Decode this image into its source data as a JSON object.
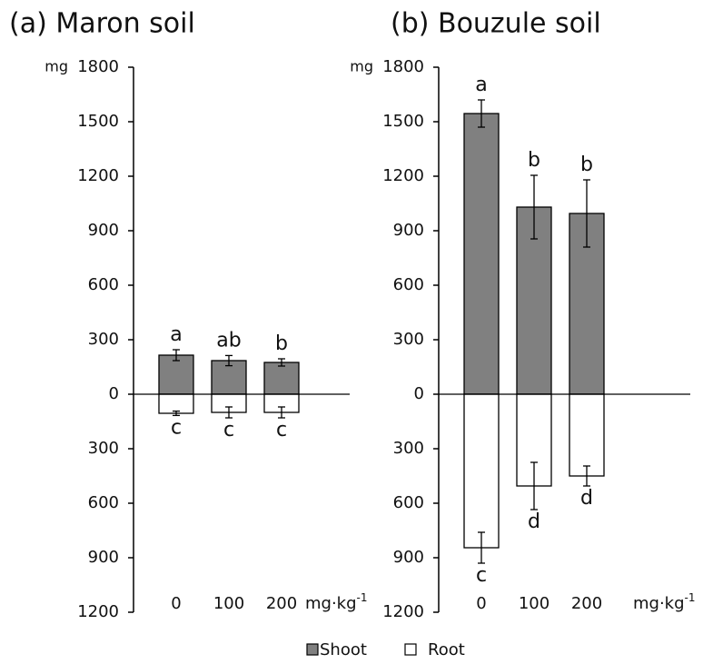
{
  "chart_data": [
    {
      "type": "bar",
      "title": "(a) Maron soil",
      "y_label": "mg",
      "x_label": "mg·kg",
      "x_label_sup": "-1",
      "categories": [
        "0",
        "100",
        "200"
      ],
      "series": [
        {
          "name": "Shoot",
          "color": "#808080",
          "values": [
            215,
            185,
            175
          ],
          "errors": [
            30,
            28,
            20
          ],
          "letters": [
            "a",
            "ab",
            "b"
          ]
        },
        {
          "name": "Root",
          "color": "#ffffff",
          "values": [
            -105,
            -100,
            -100
          ],
          "errors": [
            12,
            30,
            30
          ],
          "letters": [
            "c",
            "c",
            "c"
          ]
        }
      ],
      "ylim": [
        -1200,
        1800
      ],
      "yticks": [
        {
          "value": -1200,
          "label": "1200"
        },
        {
          "value": -900,
          "label": "900"
        },
        {
          "value": -600,
          "label": "600"
        },
        {
          "value": -300,
          "label": "300"
        },
        0,
        300,
        600,
        900,
        1200,
        1500,
        1800
      ]
    },
    {
      "type": "bar",
      "title": "(b) Bouzule soil",
      "y_label": "mg",
      "x_label": "mg·kg",
      "x_label_sup": "-1",
      "categories": [
        "0",
        "100",
        "200"
      ],
      "series": [
        {
          "color": "#808080",
          "values": [
            1545,
            1030,
            995
          ],
          "errors": [
            75,
            175,
            185
          ],
          "letters": [
            "a",
            "b",
            "b"
          ]
        },
        {
          "color": "#ffffff",
          "values": [
            -845,
            -505,
            -450
          ],
          "errors": [
            85,
            130,
            55
          ],
          "letters": [
            "c",
            "d",
            "d"
          ]
        }
      ],
      "ylim": [
        -1200,
        1800
      ],
      "yticks": [
        {
          "value": -1200,
          "label": "1200"
        },
        {
          "value": -900,
          "label": "900"
        },
        {
          "value": -600,
          "label": "600"
        },
        {
          "value": -300,
          "label": "300"
        },
        0,
        300,
        600,
        900,
        1200,
        1500,
        1800
      ]
    }
  ]
}
